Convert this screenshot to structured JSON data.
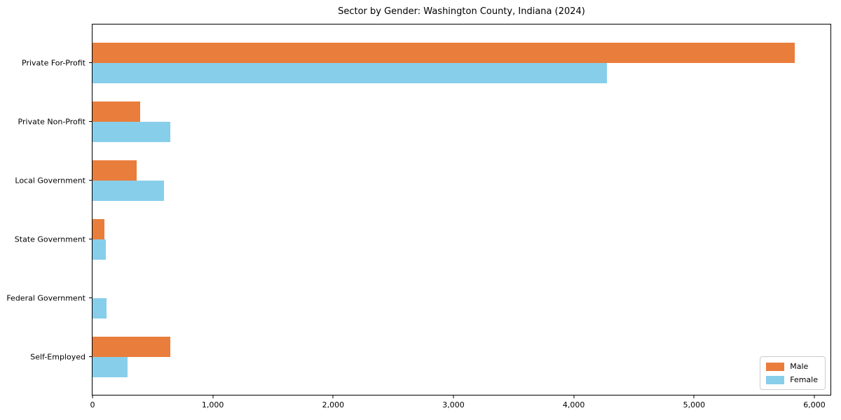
{
  "chart_data": {
    "type": "bar",
    "orientation": "horizontal",
    "title": "Sector by Gender: Washington County, Indiana (2024)",
    "categories": [
      "Private For-Profit",
      "Private Non-Profit",
      "Local Government",
      "State Government",
      "Federal Government",
      "Self-Employed"
    ],
    "series": [
      {
        "name": "Male",
        "color": "#e97d3c",
        "values": [
          5837,
          398,
          365,
          98,
          0,
          646
        ]
      },
      {
        "name": "Female",
        "color": "#87ceeb",
        "values": [
          4278,
          645,
          597,
          113,
          116,
          292
        ]
      }
    ],
    "xlabel": "",
    "ylabel": "",
    "xlim": [
      0,
      6134
    ],
    "x_ticks": [
      {
        "value": 0,
        "label": "0"
      },
      {
        "value": 1000,
        "label": "1,000"
      },
      {
        "value": 2000,
        "label": "2,000"
      },
      {
        "value": 3000,
        "label": "3,000"
      },
      {
        "value": 4000,
        "label": "4,000"
      },
      {
        "value": 5000,
        "label": "5,000"
      },
      {
        "value": 6000,
        "label": "6,000"
      }
    ],
    "grid": false,
    "legend_position": "lower right",
    "axis_color": "#000000",
    "background_color": "#ffffff"
  }
}
